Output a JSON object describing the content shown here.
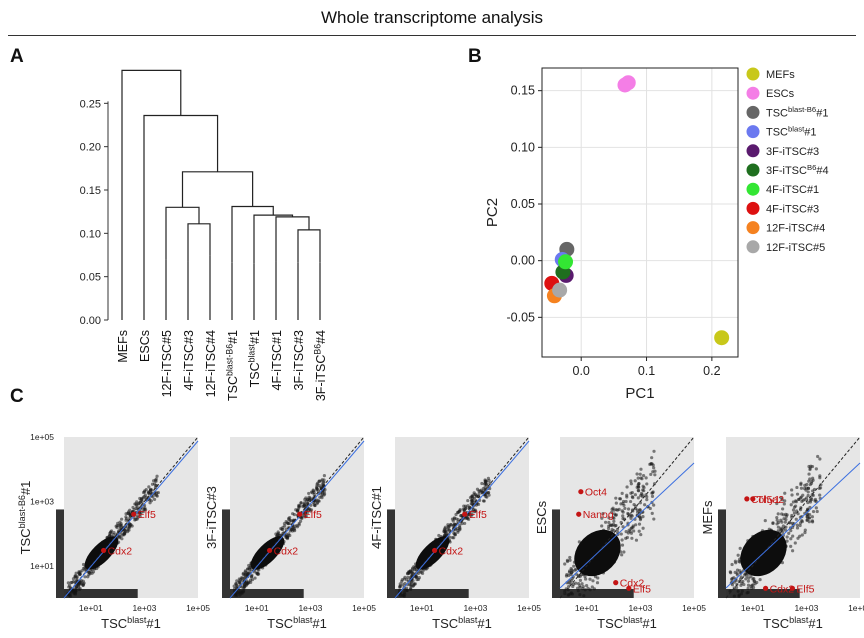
{
  "header": {
    "title": "Whole transcriptome analysis"
  },
  "panels": {
    "a": "A",
    "b": "B",
    "c": "C"
  },
  "chart_data": [
    {
      "type": "dendrogram",
      "panel": "A",
      "ylim": [
        0,
        0.3
      ],
      "yticks": [
        "0.00",
        "0.05",
        "0.10",
        "0.15",
        "0.20",
        "0.25"
      ],
      "leaves": [
        {
          "label": "MEFs",
          "height": 0.071
        },
        {
          "label": "ESCs",
          "height": 0.071
        },
        {
          "label": "12F-iTSC#5",
          "height": 0.07
        },
        {
          "label": "4F-iTSC#3",
          "height": 0.068
        },
        {
          "label": "12F-iTSC#4",
          "height": 0.074
        },
        {
          "label": "TSC",
          "sup": "blast-B6",
          "suffix": "#1",
          "height": 0.066
        },
        {
          "label": "TSC",
          "sup": "blast",
          "suffix": "#1",
          "height": 0.065
        },
        {
          "label": "4F-iTSC#1",
          "height": 0.068
        },
        {
          "label": "3F-iTSC#3",
          "height": 0.066
        },
        {
          "label": "3F-iTSC",
          "sup": "B6",
          "suffix": "#4",
          "height": 0.066
        }
      ],
      "merges": [
        {
          "a": 3,
          "b": 4,
          "h": 0.111
        },
        {
          "a": 2,
          "b": 10,
          "h": 0.13
        },
        {
          "a": 8,
          "b": 9,
          "h": 0.104
        },
        {
          "a": 7,
          "b": 12,
          "h": 0.119
        },
        {
          "a": 6,
          "b": 13,
          "h": 0.121
        },
        {
          "a": 5,
          "b": 14,
          "h": 0.131
        },
        {
          "a": 11,
          "b": 15,
          "h": 0.171
        },
        {
          "a": 1,
          "b": 16,
          "h": 0.236
        },
        {
          "a": 0,
          "b": 17,
          "h": 0.288
        }
      ]
    },
    {
      "type": "scatter",
      "panel": "B",
      "xlabel": "PC1",
      "ylabel": "PC2",
      "xlim": [
        -0.06,
        0.24
      ],
      "ylim": [
        -0.085,
        0.17
      ],
      "xticks": [
        0.0,
        0.1,
        0.2
      ],
      "xtick_labels": [
        "0.0",
        "0.1",
        "0.2"
      ],
      "yticks": [
        -0.05,
        0.0,
        0.05,
        0.1,
        0.15
      ],
      "ytick_labels": [
        "-0.05",
        "0.00",
        "0.05",
        "0.10",
        "0.15"
      ],
      "grid": true,
      "legend": "right",
      "series": [
        {
          "name": "MEFs",
          "color": "#c8c81a",
          "points": [
            [
              0.215,
              -0.068
            ]
          ]
        },
        {
          "name": "ESCs",
          "color": "#f47ee6",
          "points": [
            [
              0.067,
              0.155
            ],
            [
              0.072,
              0.157
            ]
          ]
        },
        {
          "name": "TSC",
          "sup": "blast-B6",
          "suffix": "#1",
          "color": "#666666",
          "points": [
            [
              -0.022,
              0.01
            ]
          ]
        },
        {
          "name": "TSC",
          "sup": "blast",
          "suffix": "#1",
          "color": "#6b79f0",
          "points": [
            [
              -0.029,
              0.001
            ]
          ]
        },
        {
          "name": "3F-iTSC#3",
          "color": "#5a1a6e",
          "points": [
            [
              -0.023,
              -0.013
            ]
          ]
        },
        {
          "name": "3F-iTSC",
          "sup": "B6",
          "suffix": "#4",
          "color": "#1f6f1f",
          "points": [
            [
              -0.028,
              -0.01
            ]
          ]
        },
        {
          "name": "4F-iTSC#1",
          "color": "#33e633",
          "points": [
            [
              -0.024,
              -0.001
            ]
          ]
        },
        {
          "name": "4F-iTSC#3",
          "color": "#dd1111",
          "points": [
            [
              -0.045,
              -0.02
            ]
          ]
        },
        {
          "name": "12F-iTSC#4",
          "color": "#f58220",
          "points": [
            [
              -0.041,
              -0.031
            ]
          ]
        },
        {
          "name": "12F-iTSC#5",
          "color": "#a8a8a8",
          "points": [
            [
              -0.033,
              -0.026
            ]
          ]
        }
      ]
    },
    {
      "type": "scatter",
      "panel": "C",
      "scale": "log",
      "xlim": [
        "1e+00",
        "1e+05"
      ],
      "ylim": [
        "1e+00",
        "1e+05"
      ],
      "xtick_labels": [
        "1e+01",
        "1e+03",
        "1e+05"
      ],
      "ytick_labels": [
        "1e+01",
        "1e+03",
        "1e+05"
      ],
      "xlabel": {
        "label": "TSC",
        "sup": "blast",
        "suffix": "#1"
      },
      "subplots": [
        {
          "ylabel": {
            "label": "TSC",
            "sup": "blast-B6",
            "suffix": "#1"
          },
          "yticks_shown": true,
          "genes": [
            {
              "name": "Elf5",
              "x": 400,
              "y": 400
            },
            {
              "name": "Cdx2",
              "x": 30,
              "y": 30
            }
          ]
        },
        {
          "ylabel": {
            "label": "3F-iTSC#3",
            "sup": "",
            "suffix": ""
          },
          "yticks_shown": false,
          "genes": [
            {
              "name": "Elf5",
              "x": 400,
              "y": 400
            },
            {
              "name": "Cdx2",
              "x": 30,
              "y": 30
            }
          ]
        },
        {
          "ylabel": {
            "label": "4F-iTSC#1",
            "sup": "",
            "suffix": ""
          },
          "yticks_shown": false,
          "genes": [
            {
              "name": "Elf5",
              "x": 400,
              "y": 400
            },
            {
              "name": "Cdx2",
              "x": 30,
              "y": 30
            }
          ]
        },
        {
          "ylabel": {
            "label": "ESCs",
            "sup": "",
            "suffix": ""
          },
          "yticks_shown": false,
          "genes": [
            {
              "name": "Oct4",
              "x": 6,
              "y": 2000
            },
            {
              "name": "Nanog",
              "x": 5,
              "y": 400
            },
            {
              "name": "Cdx2",
              "x": 120,
              "y": 3
            },
            {
              "name": "Elf5",
              "x": 370,
              "y": 2
            }
          ]
        },
        {
          "ylabel": {
            "label": "MEFs",
            "sup": "",
            "suffix": ""
          },
          "yticks_shown": false,
          "genes": [
            {
              "name": "Col5a2",
              "x": 6,
              "y": 1200
            },
            {
              "name": "Thy1",
              "x": 10,
              "y": 1200
            },
            {
              "name": "Cdx2",
              "x": 30,
              "y": 2
            },
            {
              "name": "Elf5",
              "x": 300,
              "y": 2
            }
          ]
        }
      ]
    }
  ]
}
